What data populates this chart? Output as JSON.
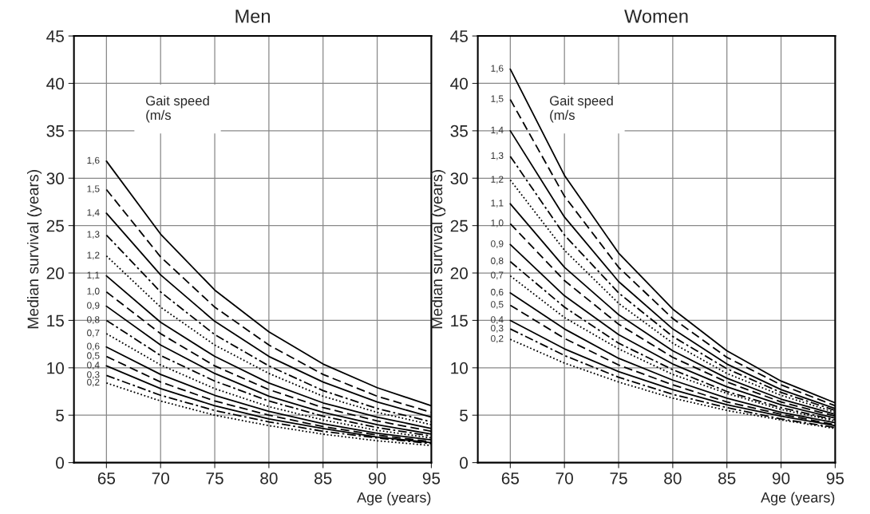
{
  "chart_data": [
    {
      "type": "line",
      "title": "Men",
      "xlabel": "Age (years)",
      "ylabel": "Median survival (years)",
      "x": [
        65,
        70,
        75,
        80,
        85,
        90,
        95
      ],
      "xlim": [
        62,
        95
      ],
      "xticks": [
        65,
        70,
        75,
        80,
        85,
        90,
        95
      ],
      "ylim": [
        0,
        45
      ],
      "yticks": [
        0,
        5,
        10,
        15,
        20,
        25,
        30,
        35,
        40,
        45
      ],
      "grid": true,
      "legend": false,
      "marker": "none",
      "annotations": [
        "Gait speed\n(m/s"
      ],
      "series": [
        {
          "name": "1,6",
          "color": "#000000",
          "line_style": "solid",
          "values": [
            31.8,
            24.1,
            18.2,
            13.8,
            10.4,
            7.9,
            6.0
          ]
        },
        {
          "name": "1,5",
          "color": "#000000",
          "line_style": "dashed",
          "values": [
            28.8,
            21.7,
            16.4,
            12.4,
            9.3,
            7.0,
            5.3
          ]
        },
        {
          "name": "1,4",
          "color": "#000000",
          "line_style": "solid",
          "values": [
            26.3,
            19.8,
            14.9,
            11.2,
            8.5,
            6.4,
            4.8
          ]
        },
        {
          "name": "1,3",
          "color": "#000000",
          "line_style": "dashdot",
          "values": [
            24.0,
            18.0,
            13.5,
            10.2,
            7.6,
            5.7,
            4.3
          ]
        },
        {
          "name": "1,2",
          "color": "#000000",
          "line_style": "dotted",
          "values": [
            21.8,
            16.4,
            12.4,
            9.4,
            7.0,
            5.3,
            4.0
          ]
        },
        {
          "name": "1,1",
          "color": "#000000",
          "line_style": "solid",
          "values": [
            19.7,
            14.8,
            11.2,
            8.4,
            6.3,
            4.8,
            3.6
          ]
        },
        {
          "name": "1,0",
          "color": "#000000",
          "line_style": "dashed",
          "values": [
            18.0,
            13.6,
            10.2,
            7.7,
            5.8,
            4.4,
            3.3
          ]
        },
        {
          "name": "0,9",
          "color": "#000000",
          "line_style": "solid",
          "values": [
            16.5,
            12.4,
            9.4,
            7.0,
            5.3,
            4.0,
            3.0
          ]
        },
        {
          "name": "0,8",
          "color": "#000000",
          "line_style": "dashdot",
          "values": [
            15.0,
            11.3,
            8.6,
            6.5,
            4.9,
            3.7,
            2.8
          ]
        },
        {
          "name": "0,7",
          "color": "#000000",
          "line_style": "dotted",
          "values": [
            13.6,
            10.3,
            7.8,
            5.9,
            4.5,
            3.4,
            2.6
          ]
        },
        {
          "name": "0,6",
          "color": "#000000",
          "line_style": "solid",
          "values": [
            12.2,
            9.3,
            7.1,
            5.4,
            4.1,
            3.1,
            2.4
          ]
        },
        {
          "name": "0,5",
          "color": "#000000",
          "line_style": "dashed",
          "values": [
            11.2,
            8.5,
            6.5,
            5.0,
            3.8,
            2.9,
            2.2
          ]
        },
        {
          "name": "0,4",
          "color": "#000000",
          "line_style": "solid",
          "values": [
            10.2,
            7.8,
            6.0,
            4.6,
            3.6,
            2.7,
            2.1
          ]
        },
        {
          "name": "0,3",
          "color": "#000000",
          "line_style": "dashdot",
          "values": [
            9.2,
            7.1,
            5.5,
            4.3,
            3.3,
            2.6,
            2.0
          ]
        },
        {
          "name": "0,2",
          "color": "#000000",
          "line_style": "dotted",
          "values": [
            8.4,
            6.5,
            5.0,
            3.9,
            3.0,
            2.3,
            1.8
          ]
        }
      ]
    },
    {
      "type": "line",
      "title": "Women",
      "xlabel": "Age (years)",
      "ylabel": "Median survival (years)",
      "x": [
        65,
        70,
        75,
        80,
        85,
        90,
        95
      ],
      "xlim": [
        62,
        95
      ],
      "xticks": [
        65,
        70,
        75,
        80,
        85,
        90,
        95
      ],
      "ylim": [
        0,
        45
      ],
      "yticks": [
        0,
        5,
        10,
        15,
        20,
        25,
        30,
        35,
        40,
        45
      ],
      "grid": true,
      "legend": false,
      "marker": "none",
      "annotations": [
        "Gait speed\n(m/s"
      ],
      "series": [
        {
          "name": "1,6",
          "color": "#000000",
          "line_style": "solid",
          "values": [
            41.5,
            30.3,
            22.1,
            16.2,
            11.8,
            8.6,
            6.3
          ]
        },
        {
          "name": "1,5",
          "color": "#000000",
          "line_style": "dashed",
          "values": [
            38.3,
            28.1,
            20.6,
            15.2,
            11.1,
            8.2,
            6.0
          ]
        },
        {
          "name": "1,4",
          "color": "#000000",
          "line_style": "solid",
          "values": [
            35.0,
            25.9,
            19.1,
            14.1,
            10.4,
            7.7,
            5.7
          ]
        },
        {
          "name": "1,3",
          "color": "#000000",
          "line_style": "dashdot",
          "values": [
            32.3,
            24.0,
            17.9,
            13.3,
            9.9,
            7.4,
            5.5
          ]
        },
        {
          "name": "1,2",
          "color": "#000000",
          "line_style": "dotted",
          "values": [
            29.8,
            22.4,
            16.8,
            12.6,
            9.4,
            7.1,
            5.3
          ]
        },
        {
          "name": "1,1",
          "color": "#000000",
          "line_style": "solid",
          "values": [
            27.3,
            20.6,
            15.6,
            11.8,
            8.9,
            6.7,
            5.1
          ]
        },
        {
          "name": "1,0",
          "color": "#000000",
          "line_style": "dashed",
          "values": [
            25.2,
            19.2,
            14.6,
            11.1,
            8.5,
            6.4,
            4.9
          ]
        },
        {
          "name": "0,9",
          "color": "#000000",
          "line_style": "solid",
          "values": [
            23.0,
            17.6,
            13.5,
            10.4,
            8.0,
            6.1,
            4.7
          ]
        },
        {
          "name": "0,8",
          "color": "#000000",
          "line_style": "dashdot",
          "values": [
            21.2,
            16.4,
            12.6,
            9.8,
            7.5,
            5.8,
            4.5
          ]
        },
        {
          "name": "0,7",
          "color": "#000000",
          "line_style": "dotted",
          "values": [
            19.7,
            15.3,
            12.0,
            9.3,
            7.3,
            5.6,
            4.4
          ]
        },
        {
          "name": "0,6",
          "color": "#000000",
          "line_style": "solid",
          "values": [
            17.9,
            14.1,
            11.0,
            8.7,
            6.8,
            5.3,
            4.2
          ]
        },
        {
          "name": "0,5",
          "color": "#000000",
          "line_style": "dashed",
          "values": [
            16.6,
            13.1,
            10.3,
            8.2,
            6.4,
            5.1,
            4.0
          ]
        },
        {
          "name": "0,4",
          "color": "#000000",
          "line_style": "solid",
          "values": [
            15.0,
            12.0,
            9.6,
            7.7,
            6.1,
            4.9,
            3.9
          ]
        },
        {
          "name": "0,3",
          "color": "#000000",
          "line_style": "dashdot",
          "values": [
            14.1,
            11.3,
            9.0,
            7.2,
            5.8,
            4.6,
            3.7
          ]
        },
        {
          "name": "0,2",
          "color": "#000000",
          "line_style": "dotted",
          "values": [
            13.0,
            10.5,
            8.5,
            6.8,
            5.5,
            4.5,
            3.6
          ]
        }
      ]
    }
  ]
}
